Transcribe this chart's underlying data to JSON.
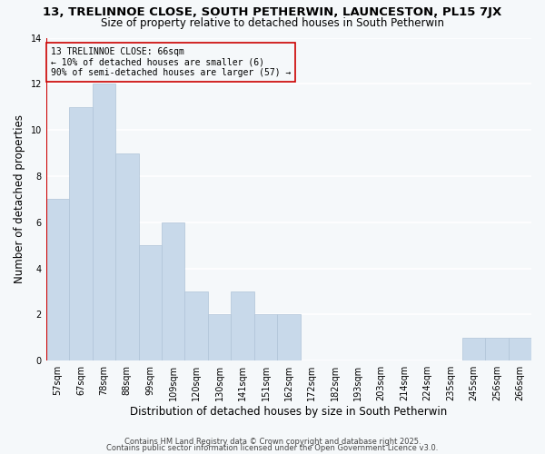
{
  "title": "13, TRELINNOE CLOSE, SOUTH PETHERWIN, LAUNCESTON, PL15 7JX",
  "subtitle": "Size of property relative to detached houses in South Petherwin",
  "xlabel": "Distribution of detached houses by size in South Petherwin",
  "ylabel": "Number of detached properties",
  "bar_color": "#c8d9ea",
  "bar_edge_color": "#b0c4d8",
  "highlight_color": "#cc0000",
  "categories": [
    "57sqm",
    "67sqm",
    "78sqm",
    "88sqm",
    "99sqm",
    "109sqm",
    "120sqm",
    "130sqm",
    "141sqm",
    "151sqm",
    "162sqm",
    "172sqm",
    "182sqm",
    "193sqm",
    "203sqm",
    "214sqm",
    "224sqm",
    "235sqm",
    "245sqm",
    "256sqm",
    "266sqm"
  ],
  "values": [
    7,
    11,
    12,
    9,
    5,
    6,
    3,
    2,
    3,
    2,
    2,
    0,
    0,
    0,
    0,
    0,
    0,
    0,
    1,
    1,
    1
  ],
  "ylim": [
    0,
    14
  ],
  "yticks": [
    0,
    2,
    4,
    6,
    8,
    10,
    12,
    14
  ],
  "annotation_text": "13 TRELINNOE CLOSE: 66sqm\n← 10% of detached houses are smaller (6)\n90% of semi-detached houses are larger (57) →",
  "footer_line1": "Contains HM Land Registry data © Crown copyright and database right 2025.",
  "footer_line2": "Contains public sector information licensed under the Open Government Licence v3.0.",
  "background_color": "#f5f8fa",
  "grid_color": "#ffffff",
  "title_fontsize": 9.5,
  "subtitle_fontsize": 8.5,
  "axis_label_fontsize": 8.5,
  "tick_fontsize": 7,
  "annotation_fontsize": 7,
  "footer_fontsize": 6
}
